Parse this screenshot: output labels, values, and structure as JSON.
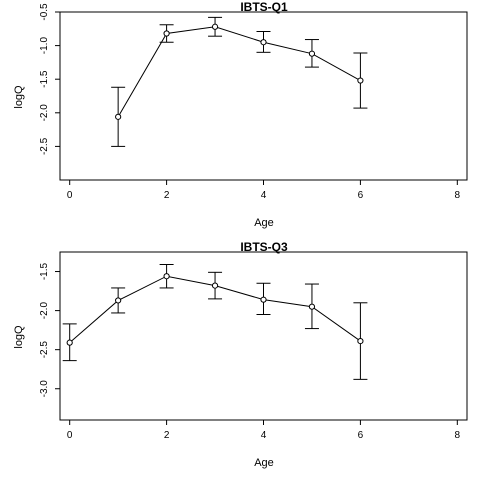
{
  "chart_data": [
    {
      "type": "line",
      "title": "IBTS-Q1",
      "xlabel": "Age",
      "ylabel": "logQ",
      "xlim": [
        -0.2,
        8.2
      ],
      "ylim": [
        -3.0,
        -0.5
      ],
      "xticks": [
        0,
        2,
        4,
        6,
        8
      ],
      "yticks": [
        -0.5,
        -1.0,
        -1.5,
        -2.0,
        -2.5
      ],
      "ytick_labels": [
        "-0.5",
        "-1.0",
        "-1.5",
        "-2.0",
        "-2.5"
      ],
      "grid": false,
      "series": [
        {
          "x": [
            1,
            2,
            3,
            4,
            5,
            6
          ],
          "y": [
            -2.06,
            -0.82,
            -0.72,
            -0.95,
            -1.12,
            -1.52
          ],
          "lower": [
            -2.5,
            -0.95,
            -0.86,
            -1.1,
            -1.32,
            -1.93
          ],
          "upper": [
            -1.62,
            -0.69,
            -0.58,
            -0.79,
            -0.91,
            -1.11
          ]
        }
      ]
    },
    {
      "type": "line",
      "title": "IBTS-Q3",
      "xlabel": "Age",
      "ylabel": "logQ",
      "xlim": [
        -0.2,
        8.2
      ],
      "ylim": [
        -3.4,
        -1.25
      ],
      "xticks": [
        0,
        2,
        4,
        6,
        8
      ],
      "yticks": [
        -1.5,
        -2.0,
        -2.5,
        -3.0
      ],
      "ytick_labels": [
        "-1.5",
        "-2.0",
        "-2.5",
        "-3.0"
      ],
      "grid": false,
      "series": [
        {
          "x": [
            0,
            1,
            2,
            3,
            4,
            5,
            6
          ],
          "y": [
            -2.41,
            -1.87,
            -1.56,
            -1.68,
            -1.86,
            -1.95,
            -2.39
          ],
          "lower": [
            -2.64,
            -2.03,
            -1.71,
            -1.85,
            -2.05,
            -2.23,
            -2.88
          ],
          "upper": [
            -2.17,
            -1.71,
            -1.41,
            -1.51,
            -1.65,
            -1.66,
            -1.9
          ]
        }
      ]
    }
  ]
}
